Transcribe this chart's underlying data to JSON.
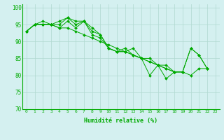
{
  "xlabel": "Humidité relative (%)",
  "background_color": "#d4f0f0",
  "grid_color": "#b0d8d0",
  "line_color": "#00aa00",
  "xlim": [
    -0.5,
    23.5
  ],
  "ylim": [
    70,
    101
  ],
  "yticks": [
    70,
    75,
    80,
    85,
    90,
    95,
    100
  ],
  "xticks": [
    0,
    1,
    2,
    3,
    4,
    5,
    6,
    7,
    8,
    9,
    10,
    11,
    12,
    13,
    14,
    15,
    16,
    17,
    18,
    19,
    20,
    21,
    22,
    23
  ],
  "x_values": [
    0,
    1,
    2,
    3,
    4,
    5,
    6,
    7,
    8,
    9,
    10,
    11,
    12,
    13,
    14,
    15,
    16,
    17,
    18,
    19,
    20,
    21,
    22,
    23
  ],
  "series": [
    [
      93,
      95,
      95,
      95,
      95,
      97,
      96,
      96,
      94,
      92,
      88,
      87,
      87,
      88,
      85,
      80,
      83,
      83,
      81,
      81,
      88,
      86,
      82,
      null
    ],
    [
      93,
      95,
      96,
      95,
      96,
      97,
      95,
      96,
      93,
      92,
      88,
      87,
      87,
      86,
      85,
      85,
      83,
      79,
      81,
      81,
      88,
      86,
      82,
      null
    ],
    [
      93,
      95,
      95,
      95,
      94,
      96,
      94,
      96,
      92,
      91,
      88,
      87,
      88,
      86,
      85,
      84,
      83,
      82,
      81,
      81,
      null,
      null,
      82,
      null
    ],
    [
      93,
      95,
      95,
      95,
      94,
      94,
      93,
      92,
      91,
      90,
      89,
      88,
      87,
      86,
      85,
      84,
      83,
      82,
      81,
      81,
      80,
      82,
      82,
      null
    ]
  ]
}
